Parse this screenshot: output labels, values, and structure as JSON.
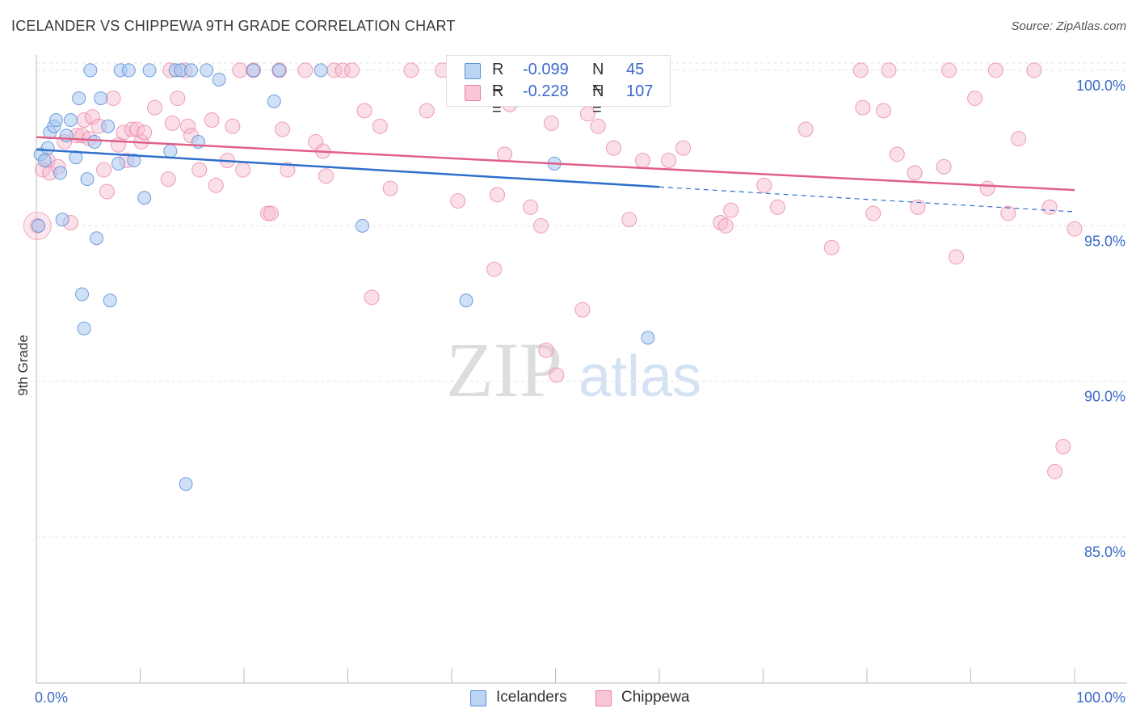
{
  "title": "ICELANDER VS CHIPPEWA 9TH GRADE CORRELATION CHART",
  "source": "Source: ZipAtlas.com",
  "watermark": {
    "zip": "ZIP",
    "atlas": "atlas"
  },
  "legend": {
    "r_label": "R =",
    "n_label": "N =",
    "rows": [
      {
        "series": "Icelanders",
        "r": "-0.099",
        "n": "45"
      },
      {
        "series": "Chippewa",
        "r": "-0.228",
        "n": "107"
      }
    ]
  },
  "bottom_legend": [
    "Icelanders",
    "Chippewa"
  ],
  "colors": {
    "icelanders_fill": "#a9c8f0",
    "icelanders_stroke": "#5b8fd6",
    "icelanders_line": "#2f6fcc",
    "chippewa_fill": "#f6b9cd",
    "chippewa_stroke": "#e87fa3",
    "chippewa_line": "#e0608a",
    "tick_text": "#3a6ac8",
    "grid": "#e3e3e3"
  },
  "chart_data": {
    "type": "scatter",
    "title": "ICELANDER VS CHIPPEWA 9TH GRADE CORRELATION CHART",
    "xlabel": "",
    "ylabel": "9th Grade",
    "xlim": [
      0,
      100
    ],
    "ylim": [
      80.3,
      100.7
    ],
    "x_tick_labels": [
      "0.0%",
      "100.0%"
    ],
    "y_ticks": [
      85,
      90,
      95,
      100
    ],
    "y_tick_labels": [
      "85.0%",
      "90.0%",
      "95.0%",
      "100.0%"
    ],
    "grid": true,
    "legend_position": "top-center",
    "series": [
      {
        "name": "Icelanders",
        "r": -0.099,
        "n": 45,
        "trend": {
          "x": [
            0,
            60,
            100
          ],
          "y": [
            97.45,
            96.25,
            95.45
          ],
          "solid_until": 60
        },
        "points": [
          [
            0.2,
            95.0
          ],
          [
            0.4,
            97.3
          ],
          [
            0.8,
            97.1
          ],
          [
            1.1,
            97.5
          ],
          [
            1.3,
            98.0
          ],
          [
            1.7,
            98.2
          ],
          [
            1.9,
            98.4
          ],
          [
            2.3,
            96.7
          ],
          [
            2.5,
            95.2
          ],
          [
            2.9,
            97.9
          ],
          [
            3.3,
            98.4
          ],
          [
            3.8,
            97.2
          ],
          [
            4.1,
            99.1
          ],
          [
            4.4,
            92.8
          ],
          [
            4.6,
            91.7
          ],
          [
            4.9,
            96.5
          ],
          [
            5.2,
            100.0
          ],
          [
            5.6,
            97.7
          ],
          [
            5.8,
            94.6
          ],
          [
            6.2,
            99.1
          ],
          [
            6.9,
            98.2
          ],
          [
            7.1,
            92.6
          ],
          [
            7.9,
            97.0
          ],
          [
            8.1,
            100.0
          ],
          [
            8.9,
            100.0
          ],
          [
            9.4,
            97.1
          ],
          [
            10.4,
            95.9
          ],
          [
            10.9,
            100.0
          ],
          [
            12.9,
            97.4
          ],
          [
            13.4,
            100.0
          ],
          [
            13.9,
            100.0
          ],
          [
            14.4,
            86.7
          ],
          [
            14.9,
            100.0
          ],
          [
            15.6,
            97.7
          ],
          [
            16.4,
            100.0
          ],
          [
            17.6,
            99.7
          ],
          [
            20.9,
            100.0
          ],
          [
            22.9,
            99.0
          ],
          [
            23.4,
            100.0
          ],
          [
            27.4,
            100.0
          ],
          [
            31.4,
            95.0
          ],
          [
            41.4,
            92.6
          ],
          [
            49.4,
            100.0
          ],
          [
            49.9,
            97.0
          ],
          [
            58.9,
            91.4
          ]
        ]
      },
      {
        "name": "Chippewa",
        "r": -0.228,
        "n": 107,
        "trend": {
          "x": [
            0,
            100
          ],
          "y": [
            97.85,
            96.15
          ]
        },
        "points": [
          [
            0.1,
            95.0
          ],
          [
            0.6,
            96.8
          ],
          [
            1.1,
            97.1
          ],
          [
            1.3,
            96.7
          ],
          [
            2.1,
            96.9
          ],
          [
            2.7,
            97.7
          ],
          [
            3.3,
            95.1
          ],
          [
            3.9,
            97.9
          ],
          [
            4.4,
            97.9
          ],
          [
            4.6,
            98.4
          ],
          [
            5.1,
            97.8
          ],
          [
            5.4,
            98.5
          ],
          [
            6.0,
            98.2
          ],
          [
            6.5,
            96.8
          ],
          [
            6.8,
            96.1
          ],
          [
            7.4,
            99.1
          ],
          [
            7.9,
            97.6
          ],
          [
            8.4,
            98.0
          ],
          [
            8.7,
            97.1
          ],
          [
            9.2,
            98.1
          ],
          [
            9.7,
            98.1
          ],
          [
            10.1,
            97.7
          ],
          [
            10.4,
            98.0
          ],
          [
            11.4,
            98.8
          ],
          [
            12.7,
            96.5
          ],
          [
            12.9,
            100.0
          ],
          [
            13.1,
            98.3
          ],
          [
            13.6,
            99.1
          ],
          [
            14.3,
            100.0
          ],
          [
            14.6,
            98.2
          ],
          [
            14.9,
            97.9
          ],
          [
            15.7,
            96.8
          ],
          [
            16.9,
            98.4
          ],
          [
            17.3,
            96.3
          ],
          [
            18.4,
            97.1
          ],
          [
            18.9,
            98.2
          ],
          [
            19.6,
            100.0
          ],
          [
            19.9,
            96.8
          ],
          [
            20.9,
            100.0
          ],
          [
            22.3,
            95.4
          ],
          [
            22.6,
            95.4
          ],
          [
            23.4,
            100.0
          ],
          [
            23.7,
            98.1
          ],
          [
            24.2,
            96.8
          ],
          [
            25.9,
            100.0
          ],
          [
            26.9,
            97.7
          ],
          [
            27.6,
            97.4
          ],
          [
            27.9,
            96.6
          ],
          [
            28.7,
            100.0
          ],
          [
            29.5,
            100.0
          ],
          [
            30.4,
            100.0
          ],
          [
            31.6,
            98.7
          ],
          [
            32.3,
            92.7
          ],
          [
            33.1,
            98.2
          ],
          [
            34.1,
            96.2
          ],
          [
            36.1,
            100.0
          ],
          [
            37.6,
            98.7
          ],
          [
            39.1,
            100.0
          ],
          [
            40.6,
            95.8
          ],
          [
            42.4,
            100.0
          ],
          [
            44.1,
            93.6
          ],
          [
            44.4,
            96.0
          ],
          [
            45.1,
            97.3
          ],
          [
            45.6,
            98.9
          ],
          [
            47.6,
            95.6
          ],
          [
            48.6,
            95.0
          ],
          [
            49.1,
            91.0
          ],
          [
            49.6,
            98.3
          ],
          [
            50.1,
            90.2
          ],
          [
            51.6,
            99.8
          ],
          [
            52.6,
            92.3
          ],
          [
            53.1,
            98.6
          ],
          [
            54.1,
            98.2
          ],
          [
            55.6,
            97.5
          ],
          [
            57.1,
            95.2
          ],
          [
            58.4,
            97.1
          ],
          [
            60.1,
            100.0
          ],
          [
            60.9,
            97.1
          ],
          [
            62.3,
            97.5
          ],
          [
            65.9,
            95.1
          ],
          [
            66.4,
            95.0
          ],
          [
            66.9,
            95.5
          ],
          [
            70.1,
            96.3
          ],
          [
            71.4,
            95.6
          ],
          [
            74.1,
            98.1
          ],
          [
            76.6,
            94.3
          ],
          [
            79.4,
            100.0
          ],
          [
            79.6,
            98.8
          ],
          [
            80.6,
            95.4
          ],
          [
            81.6,
            98.7
          ],
          [
            82.1,
            100.0
          ],
          [
            82.9,
            97.3
          ],
          [
            84.6,
            96.7
          ],
          [
            84.9,
            95.6
          ],
          [
            87.4,
            96.9
          ],
          [
            87.9,
            100.0
          ],
          [
            88.6,
            94.0
          ],
          [
            90.4,
            99.1
          ],
          [
            91.6,
            96.2
          ],
          [
            92.4,
            100.0
          ],
          [
            93.6,
            95.4
          ],
          [
            94.6,
            97.8
          ],
          [
            96.1,
            100.0
          ],
          [
            97.6,
            95.6
          ],
          [
            98.1,
            87.1
          ],
          [
            98.9,
            87.9
          ],
          [
            100.0,
            94.9
          ]
        ]
      }
    ]
  }
}
